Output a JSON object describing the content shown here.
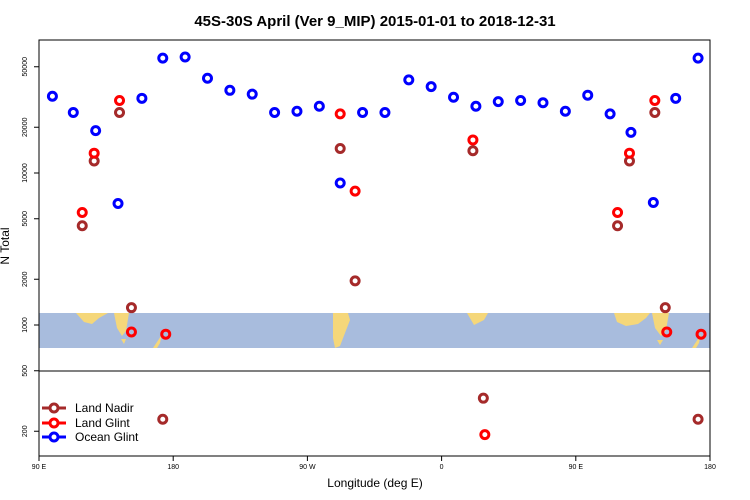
{
  "chart_data": {
    "type": "scatter",
    "title": "45S-30S April (Ver 9_MIP)   2015-01-01 to 2018-12-31",
    "xlabel": "Longitude (deg E)",
    "ylabel": "N Total",
    "y_scale": "log",
    "x_range": [
      90,
      540
    ],
    "y_range": [
      150,
      70000
    ],
    "x_ticks": [
      {
        "value": 90,
        "label": "90 E"
      },
      {
        "value": 180,
        "label": "180"
      },
      {
        "value": 270,
        "label": "90 W"
      },
      {
        "value": 360,
        "label": "0"
      },
      {
        "value": 450,
        "label": "90 E"
      },
      {
        "value": 540,
        "label": "180"
      }
    ],
    "y_ticks": [
      {
        "value": 200,
        "label": "200"
      },
      {
        "value": 500,
        "label": "500"
      },
      {
        "value": 1000,
        "label": "1000"
      },
      {
        "value": 2000,
        "label": "2000"
      },
      {
        "value": 5000,
        "label": "5000"
      },
      {
        "value": 10000,
        "label": "10000"
      },
      {
        "value": 20000,
        "label": "20000"
      },
      {
        "value": 50000,
        "label": "50000"
      }
    ],
    "legend_position": "bottom-left",
    "series": [
      {
        "name": "Land Nadir",
        "color": "#a52a2a",
        "points": [
          {
            "x": 119,
            "y": 4500
          },
          {
            "x": 127,
            "y": 12000
          },
          {
            "x": 144,
            "y": 25000
          },
          {
            "x": 152,
            "y": 1300
          },
          {
            "x": 173,
            "y": 240
          },
          {
            "x": 292,
            "y": 14500
          },
          {
            "x": 302,
            "y": 1950
          },
          {
            "x": 381,
            "y": 14000
          },
          {
            "x": 388,
            "y": 330
          },
          {
            "x": 478,
            "y": 4500
          },
          {
            "x": 486,
            "y": 12000
          },
          {
            "x": 503,
            "y": 25000
          },
          {
            "x": 510,
            "y": 1300
          },
          {
            "x": 532,
            "y": 240
          }
        ]
      },
      {
        "name": "Land Glint",
        "color": "#ff0000",
        "points": [
          {
            "x": 119,
            "y": 5500
          },
          {
            "x": 127,
            "y": 13500
          },
          {
            "x": 144,
            "y": 30000
          },
          {
            "x": 152,
            "y": 900
          },
          {
            "x": 175,
            "y": 870
          },
          {
            "x": 292,
            "y": 24500
          },
          {
            "x": 302,
            "y": 7600
          },
          {
            "x": 381,
            "y": 16500
          },
          {
            "x": 389,
            "y": 190
          },
          {
            "x": 478,
            "y": 5500
          },
          {
            "x": 486,
            "y": 13500
          },
          {
            "x": 503,
            "y": 30000
          },
          {
            "x": 511,
            "y": 900
          },
          {
            "x": 534,
            "y": 870
          }
        ]
      },
      {
        "name": "Ocean Glint",
        "color": "#0000ff",
        "points": [
          {
            "x": 99,
            "y": 32000
          },
          {
            "x": 113,
            "y": 25000
          },
          {
            "x": 128,
            "y": 19000
          },
          {
            "x": 143,
            "y": 6300
          },
          {
            "x": 159,
            "y": 31000
          },
          {
            "x": 173,
            "y": 57000
          },
          {
            "x": 188,
            "y": 58000
          },
          {
            "x": 203,
            "y": 42000
          },
          {
            "x": 218,
            "y": 35000
          },
          {
            "x": 233,
            "y": 33000
          },
          {
            "x": 248,
            "y": 25000
          },
          {
            "x": 263,
            "y": 25500
          },
          {
            "x": 278,
            "y": 27500
          },
          {
            "x": 292,
            "y": 8600
          },
          {
            "x": 307,
            "y": 25000
          },
          {
            "x": 322,
            "y": 25000
          },
          {
            "x": 338,
            "y": 41000
          },
          {
            "x": 353,
            "y": 37000
          },
          {
            "x": 368,
            "y": 31500
          },
          {
            "x": 383,
            "y": 27500
          },
          {
            "x": 398,
            "y": 29500
          },
          {
            "x": 413,
            "y": 30000
          },
          {
            "x": 428,
            "y": 29000
          },
          {
            "x": 443,
            "y": 25500
          },
          {
            "x": 458,
            "y": 32500
          },
          {
            "x": 473,
            "y": 24500
          },
          {
            "x": 487,
            "y": 18500
          },
          {
            "x": 502,
            "y": 6400
          },
          {
            "x": 517,
            "y": 31000
          },
          {
            "x": 532,
            "y": 57000
          }
        ]
      }
    ]
  }
}
